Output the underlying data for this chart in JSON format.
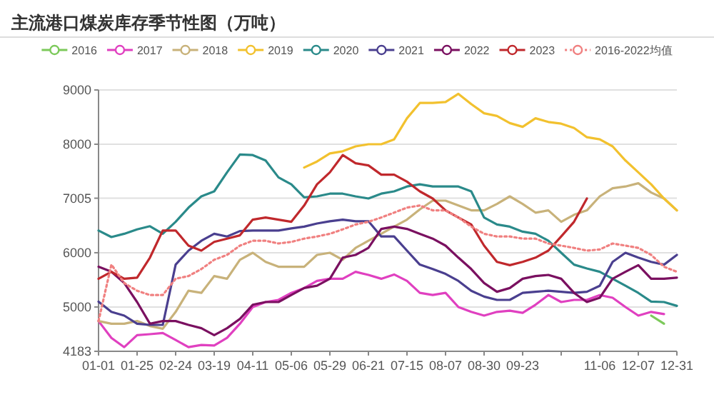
{
  "chart_data": {
    "type": "line",
    "title": "主流港口煤炭库存季节性图（万吨）",
    "legend": "top",
    "grid": "y",
    "categories": [
      "01-01",
      null,
      null,
      "01-25",
      null,
      null,
      "02-24",
      null,
      null,
      "03-19",
      null,
      null,
      "04-11",
      null,
      null,
      "05-06",
      null,
      null,
      "05-29",
      null,
      null,
      "06-21",
      null,
      null,
      "07-15",
      null,
      null,
      "08-07",
      null,
      null,
      "08-30",
      null,
      null,
      "09-23",
      null,
      null,
      null,
      null,
      null,
      "11-06",
      null,
      null,
      "12-07",
      null,
      null,
      "12-31"
    ],
    "ylim": [
      4183,
      9000
    ],
    "yticks": [
      4183,
      5000,
      6000,
      7005,
      8000,
      9000
    ],
    "series": [
      {
        "name": "2016",
        "color": "#7cc95a",
        "values": [
          null,
          null,
          null,
          null,
          null,
          null,
          null,
          null,
          null,
          null,
          null,
          null,
          null,
          null,
          null,
          null,
          null,
          null,
          null,
          null,
          null,
          null,
          null,
          null,
          null,
          null,
          null,
          null,
          null,
          null,
          null,
          null,
          null,
          null,
          null,
          null,
          null,
          null,
          null,
          null,
          null,
          null,
          null,
          4840,
          4690,
          null
        ]
      },
      {
        "name": "2017",
        "color": "#e040c0",
        "values": [
          4740,
          4430,
          4260,
          4480,
          4500,
          4520,
          4390,
          4260,
          4300,
          4290,
          4430,
          4690,
          5000,
          5090,
          5130,
          5260,
          5350,
          5480,
          5520,
          5520,
          5650,
          5590,
          5520,
          5600,
          5480,
          5260,
          5220,
          5260,
          5000,
          4910,
          4840,
          4910,
          4930,
          4890,
          5040,
          5220,
          5090,
          5130,
          5130,
          5220,
          5170,
          5000,
          4840,
          4910,
          4870,
          null
        ]
      },
      {
        "name": "2018",
        "color": "#c8b27a",
        "values": [
          4740,
          4690,
          4690,
          4740,
          4650,
          4600,
          4910,
          5300,
          5260,
          5570,
          5520,
          5870,
          6000,
          5830,
          5740,
          5740,
          5740,
          5960,
          6000,
          5870,
          6090,
          6220,
          6350,
          6480,
          6610,
          6800,
          6960,
          6960,
          6870,
          6780,
          6780,
          6900,
          7040,
          6900,
          6740,
          6780,
          6570,
          6700,
          6780,
          7040,
          7190,
          7220,
          7280,
          7110,
          7000,
          6780
        ]
      },
      {
        "name": "2019",
        "color": "#f2c12e",
        "values": [
          null,
          null,
          null,
          null,
          null,
          null,
          null,
          null,
          null,
          null,
          null,
          null,
          null,
          null,
          null,
          null,
          7570,
          7680,
          7830,
          7870,
          7960,
          8000,
          8000,
          8090,
          8480,
          8760,
          8760,
          8780,
          8930,
          8740,
          8570,
          8520,
          8390,
          8320,
          8480,
          8410,
          8380,
          8300,
          8130,
          8090,
          7960,
          7700,
          7480,
          7260,
          7000,
          6780
        ]
      },
      {
        "name": "2020",
        "color": "#2a8a8a",
        "values": [
          6410,
          6290,
          6350,
          6430,
          6490,
          6350,
          6570,
          6830,
          7040,
          7130,
          7480,
          7810,
          7800,
          7700,
          7390,
          7260,
          7020,
          7040,
          7090,
          7090,
          7040,
          7000,
          7090,
          7130,
          7220,
          7260,
          7220,
          7220,
          7220,
          7130,
          6650,
          6520,
          6480,
          6390,
          6350,
          6220,
          6000,
          5780,
          5710,
          5650,
          5520,
          5390,
          5260,
          5100,
          5090,
          5020
        ]
      },
      {
        "name": "2021",
        "color": "#4a3f8f",
        "values": [
          5100,
          4910,
          4840,
          4690,
          4670,
          4670,
          5780,
          6040,
          6220,
          6350,
          6300,
          6400,
          6410,
          6410,
          6410,
          6450,
          6480,
          6540,
          6580,
          6610,
          6580,
          6580,
          6300,
          6300,
          6040,
          5780,
          5700,
          5610,
          5480,
          5300,
          5190,
          5130,
          5130,
          5260,
          5280,
          5300,
          5280,
          5260,
          5280,
          5390,
          5830,
          6000,
          5910,
          5830,
          5780,
          5960
        ]
      },
      {
        "name": "2022",
        "color": "#7a1060",
        "values": [
          5740,
          5650,
          5440,
          5090,
          4690,
          4740,
          4740,
          4670,
          4610,
          4480,
          4610,
          4780,
          5040,
          5090,
          5090,
          5220,
          5350,
          5390,
          5520,
          5910,
          5960,
          6090,
          6440,
          6480,
          6440,
          6350,
          6260,
          6130,
          5910,
          5700,
          5440,
          5280,
          5350,
          5520,
          5570,
          5590,
          5520,
          5260,
          5090,
          5170,
          5520,
          5650,
          5770,
          5520,
          5520,
          5540
        ]
      },
      {
        "name": "2023",
        "color": "#c0282c",
        "values": [
          5520,
          5650,
          5520,
          5540,
          5910,
          6410,
          6410,
          6130,
          6040,
          6200,
          6260,
          6320,
          6610,
          6650,
          6610,
          6570,
          6870,
          7260,
          7480,
          7800,
          7650,
          7610,
          7440,
          7440,
          7310,
          7130,
          7000,
          6780,
          6650,
          6520,
          6130,
          5830,
          5770,
          5830,
          5910,
          6040,
          6300,
          6570,
          7000,
          null,
          null,
          null,
          null,
          null,
          null,
          null
        ]
      },
      {
        "name": "2016-2022均值",
        "color": "#f08080",
        "line_style": "dotted",
        "values": [
          4740,
          5780,
          5440,
          5300,
          5220,
          5220,
          5520,
          5570,
          5700,
          5870,
          5960,
          6130,
          6220,
          6220,
          6170,
          6200,
          6260,
          6300,
          6350,
          6430,
          6520,
          6570,
          6650,
          6740,
          6830,
          6870,
          6780,
          6780,
          6650,
          6480,
          6350,
          6300,
          6300,
          6260,
          6260,
          6170,
          6130,
          6090,
          6040,
          6060,
          6170,
          6130,
          6090,
          5960,
          5740,
          5650
        ]
      }
    ]
  }
}
